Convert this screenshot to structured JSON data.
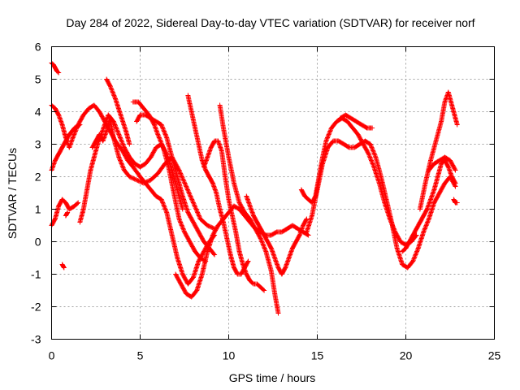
{
  "chart_data": {
    "type": "scatter",
    "title": "Day 284 of 2022, Sidereal Day-to-day VTEC variation (SDTVAR) for receiver norf",
    "xlabel": "GPS time / hours",
    "ylabel": "SDTVAR / TECUs",
    "xlim": [
      0,
      25
    ],
    "ylim": [
      -3,
      6
    ],
    "xticks": [
      0,
      5,
      10,
      15,
      20,
      25
    ],
    "yticks": [
      -3,
      -2,
      -1,
      0,
      1,
      2,
      3,
      4,
      5,
      6
    ],
    "grid": true,
    "marker": "+",
    "color": "#ff0000",
    "series": [
      {
        "name": "s1",
        "x": [
          0.0,
          0.1,
          0.2,
          0.3,
          0.4
        ],
        "y": [
          5.5,
          5.45,
          5.35,
          5.25,
          5.2
        ]
      },
      {
        "name": "s2",
        "x": [
          0.0,
          0.2,
          0.4,
          0.6,
          0.8,
          1.0,
          1.2,
          1.5,
          1.8,
          2.1,
          2.4,
          2.7,
          3.0,
          3.3,
          3.6,
          4.0,
          4.3,
          4.6,
          5.0,
          5.3,
          5.6,
          5.9,
          6.2,
          6.5,
          6.8,
          7.1,
          7.4,
          7.7,
          8.0,
          8.3,
          8.6,
          8.9,
          9.2
        ],
        "y": [
          4.2,
          4.1,
          3.9,
          3.6,
          3.2,
          2.9,
          3.2,
          3.6,
          3.9,
          4.1,
          4.2,
          4.0,
          3.7,
          3.4,
          3.1,
          2.8,
          2.5,
          2.3,
          2.0,
          1.8,
          1.6,
          1.4,
          1.3,
          0.9,
          0.2,
          -0.5,
          -1.0,
          -1.3,
          -1.1,
          -0.6,
          -0.3,
          0.0,
          0.2
        ]
      },
      {
        "name": "s3",
        "x": [
          0.0,
          0.2,
          0.4,
          0.6,
          0.8,
          1.0,
          1.3,
          1.6
        ],
        "y": [
          2.2,
          2.5,
          2.7,
          2.9,
          3.1,
          3.3,
          3.5,
          3.6
        ]
      },
      {
        "name": "s4",
        "x": [
          0.0,
          0.2,
          0.4,
          0.6,
          0.8,
          1.0,
          1.3,
          1.5
        ],
        "y": [
          0.5,
          0.7,
          1.1,
          1.3,
          1.2,
          1.0,
          1.1,
          1.2
        ]
      },
      {
        "name": "s5",
        "x": [
          0.6,
          0.7
        ],
        "y": [
          -0.7,
          -0.8
        ]
      },
      {
        "name": "s6",
        "x": [
          0.8,
          0.9
        ],
        "y": [
          0.8,
          0.9
        ]
      },
      {
        "name": "s7",
        "x": [
          1.6,
          1.8,
          2.0,
          2.2,
          2.4,
          2.6,
          2.8,
          3.0,
          3.2,
          3.5,
          3.8,
          4.1,
          4.4,
          4.7,
          5.0,
          5.3,
          5.6,
          5.9,
          6.2,
          6.5,
          6.8,
          7.1,
          7.4
        ],
        "y": [
          0.6,
          1.0,
          1.6,
          2.2,
          2.6,
          3.0,
          3.3,
          3.6,
          3.9,
          3.7,
          3.3,
          2.9,
          2.6,
          2.4,
          2.3,
          2.4,
          2.6,
          2.9,
          3.0,
          2.7,
          2.2,
          1.6,
          1.0
        ]
      },
      {
        "name": "s8",
        "x": [
          2.3,
          2.5,
          2.7,
          2.9,
          3.1,
          3.3,
          3.5,
          3.8,
          4.1,
          4.4,
          4.8,
          5.2,
          5.6,
          6.0,
          6.4,
          6.8,
          7.2,
          7.6,
          8.0,
          8.4,
          8.8,
          9.2
        ],
        "y": [
          2.9,
          3.1,
          3.3,
          3.1,
          3.4,
          3.8,
          3.2,
          2.6,
          2.2,
          2.0,
          1.9,
          1.8,
          1.9,
          2.1,
          2.4,
          2.6,
          2.2,
          1.7,
          1.2,
          0.7,
          0.5,
          0.4
        ]
      },
      {
        "name": "s9",
        "x": [
          3.1,
          3.3,
          3.6,
          3.9,
          4.2,
          4.4
        ],
        "y": [
          5.0,
          4.8,
          4.4,
          3.9,
          3.4,
          3.0
        ]
      },
      {
        "name": "s10",
        "x": [
          4.6,
          4.9,
          5.2,
          5.5,
          5.8,
          6.0,
          6.3,
          6.6,
          6.9,
          7.2,
          7.5,
          7.8,
          8.1,
          8.4,
          8.7
        ],
        "y": [
          4.3,
          4.3,
          4.1,
          3.9,
          3.6,
          3.3,
          2.9,
          2.3,
          1.5,
          0.7,
          0.3,
          0.0,
          -0.3,
          -0.5,
          -0.6
        ]
      },
      {
        "name": "s11",
        "x": [
          4.8,
          5.0,
          5.3,
          5.6,
          5.9,
          6.2,
          6.5,
          6.8,
          7.1,
          7.4,
          7.7,
          8.0,
          8.3,
          8.6,
          8.9,
          9.2
        ],
        "y": [
          3.7,
          3.9,
          3.9,
          3.8,
          3.7,
          3.6,
          3.2,
          2.6,
          2.0,
          1.4,
          0.9,
          0.6,
          0.3,
          0.0,
          -0.2,
          -0.4
        ]
      },
      {
        "name": "s12",
        "x": [
          7.0,
          7.3,
          7.6,
          7.9,
          8.2,
          8.5,
          8.8,
          9.1,
          9.4,
          9.7,
          10.0,
          10.3,
          10.6,
          10.9,
          11.2,
          11.5,
          11.8,
          12.1,
          12.4,
          12.7,
          13.0,
          13.3,
          13.6,
          13.9,
          14.2,
          14.5
        ],
        "y": [
          -1.0,
          -1.3,
          -1.6,
          -1.7,
          -1.5,
          -1.0,
          -0.3,
          0.2,
          0.5,
          0.7,
          0.9,
          1.1,
          1.0,
          0.8,
          0.6,
          0.4,
          0.3,
          0.2,
          0.2,
          0.3,
          0.3,
          0.4,
          0.5,
          0.4,
          0.3,
          0.2
        ]
      },
      {
        "name": "s13",
        "x": [
          7.7,
          7.9,
          8.1,
          8.3,
          8.5,
          8.7,
          8.9,
          9.1,
          9.3,
          9.5,
          9.7,
          9.9,
          10.1,
          10.3,
          10.5,
          10.7,
          10.9,
          11.1
        ],
        "y": [
          4.5,
          4.0,
          3.5,
          3.0,
          2.5,
          2.2,
          2.0,
          1.8,
          1.5,
          1.0,
          0.6,
          0.1,
          -0.4,
          -0.8,
          -1.0,
          -1.0,
          -0.8,
          -0.6
        ]
      },
      {
        "name": "s14",
        "x": [
          8.6,
          8.8,
          9.0,
          9.2,
          9.4,
          9.6,
          9.8,
          10.0,
          10.2,
          10.4,
          10.6,
          10.8,
          11.0,
          11.2,
          11.4,
          11.6,
          11.8,
          12.0
        ],
        "y": [
          2.3,
          2.6,
          2.9,
          3.1,
          3.1,
          2.8,
          2.0,
          1.3,
          0.8,
          0.3,
          -0.3,
          -0.7,
          -1.0,
          -1.2,
          -1.3,
          -1.3,
          -1.4,
          -1.5
        ]
      },
      {
        "name": "s15",
        "x": [
          9.5,
          9.7,
          10.0,
          10.3,
          10.6,
          10.9,
          11.2,
          11.5,
          11.8,
          12.1,
          12.4,
          12.6,
          12.8
        ],
        "y": [
          4.2,
          3.5,
          2.6,
          1.8,
          1.2,
          0.9,
          0.7,
          0.4,
          0.1,
          -0.3,
          -0.9,
          -1.6,
          -2.2
        ]
      },
      {
        "name": "s16",
        "x": [
          11.0,
          11.2,
          11.4,
          11.6,
          11.8,
          12.0,
          12.2,
          12.4,
          12.6,
          12.8,
          13.0,
          13.2,
          13.4,
          13.6,
          13.8,
          14.0,
          14.2,
          14.4
        ],
        "y": [
          1.4,
          1.1,
          0.8,
          0.6,
          0.4,
          0.2,
          0.0,
          -0.2,
          -0.5,
          -0.8,
          -1.0,
          -0.8,
          -0.5,
          -0.2,
          0.0,
          0.2,
          0.5,
          0.7
        ]
      },
      {
        "name": "s17",
        "x": [
          14.1,
          14.3,
          14.5,
          14.7,
          14.9,
          15.1,
          15.3,
          15.5,
          15.8,
          16.1,
          16.4,
          16.7,
          17.0,
          17.3,
          17.6,
          17.9,
          18.2,
          18.5,
          18.8,
          19.1,
          19.4,
          19.7,
          20.0,
          20.3,
          20.6
        ],
        "y": [
          1.6,
          1.4,
          1.3,
          1.2,
          1.4,
          2.0,
          2.6,
          3.1,
          3.5,
          3.7,
          3.8,
          3.7,
          3.5,
          3.3,
          3.0,
          2.7,
          2.3,
          1.8,
          1.2,
          0.7,
          0.3,
          0.0,
          -0.1,
          0.0,
          0.2
        ]
      },
      {
        "name": "s18",
        "x": [
          14.4,
          14.7,
          15.0,
          15.3,
          15.6,
          15.9,
          16.2,
          16.5,
          16.8,
          17.1,
          17.4,
          17.7,
          18.0,
          18.3,
          18.6,
          18.9,
          19.2,
          19.5,
          19.8,
          20.1,
          20.4,
          20.7,
          21.0,
          21.3,
          21.6,
          21.9,
          22.2,
          22.5,
          22.8
        ],
        "y": [
          0.3,
          0.8,
          1.6,
          2.4,
          2.9,
          3.1,
          3.1,
          3.0,
          2.9,
          2.9,
          3.0,
          3.1,
          3.0,
          2.6,
          2.0,
          1.3,
          0.6,
          -0.2,
          -0.7,
          -0.8,
          -0.6,
          -0.2,
          0.3,
          0.7,
          1.2,
          1.5,
          1.8,
          2.0,
          1.7
        ]
      },
      {
        "name": "s19",
        "x": [
          16.3,
          16.6,
          16.9,
          17.2,
          17.5,
          17.8,
          18.1
        ],
        "y": [
          3.8,
          3.9,
          3.8,
          3.7,
          3.6,
          3.5,
          3.5
        ]
      },
      {
        "name": "s20",
        "x": [
          19.8,
          20.0,
          20.2,
          20.4,
          20.6,
          20.8,
          21.0,
          21.2,
          21.4,
          21.6,
          21.8,
          22.0,
          22.2,
          22.4,
          22.6,
          22.8
        ],
        "y": [
          -0.3,
          -0.2,
          0.0,
          0.2,
          0.4,
          0.6,
          0.8,
          1.0,
          1.3,
          1.6,
          2.0,
          2.4,
          2.5,
          2.3,
          2.0,
          1.8
        ]
      },
      {
        "name": "s21",
        "x": [
          20.8,
          21.1,
          21.4,
          21.7,
          22.0,
          22.2,
          22.4,
          22.6,
          22.8,
          22.9
        ],
        "y": [
          1.0,
          1.8,
          2.5,
          3.1,
          3.7,
          4.3,
          4.6,
          4.2,
          3.8,
          3.6
        ]
      },
      {
        "name": "s22",
        "x": [
          21.3,
          21.6,
          21.9,
          22.2,
          22.5,
          22.8
        ],
        "y": [
          2.2,
          2.4,
          2.5,
          2.6,
          2.5,
          2.2
        ]
      },
      {
        "name": "s23",
        "x": [
          22.7,
          22.8,
          22.9
        ],
        "y": [
          1.3,
          1.2,
          1.2
        ]
      }
    ]
  }
}
